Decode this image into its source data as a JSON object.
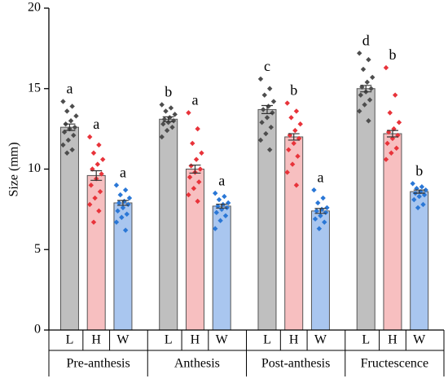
{
  "chart_data": {
    "type": "bar",
    "ylabel": "Size (mm)",
    "categories": [
      "Pre-anthesis",
      "Anthesis",
      "Post-anthesis",
      "Fructescence"
    ],
    "ylim": [
      0,
      20
    ],
    "yticks": [
      0,
      5,
      10,
      15,
      20
    ],
    "series": [
      {
        "name": "L",
        "color": "#bfbfbf",
        "point_color": "#4d4d4d",
        "values": [
          12.6,
          13.1,
          13.7,
          15.0
        ],
        "errors": [
          0.2,
          0.15,
          0.25,
          0.2
        ],
        "letters": [
          "a",
          "b",
          "c",
          "d"
        ],
        "points": [
          [
            14.2,
            13.9,
            13.6,
            13.3,
            13.0,
            12.8,
            12.6,
            12.5,
            12.3,
            12.1,
            11.8,
            11.5,
            11.2,
            11.0
          ],
          [
            14.0,
            13.8,
            13.6,
            13.4,
            13.2,
            13.1,
            13.0,
            12.9,
            12.8,
            12.6,
            12.4,
            12.0
          ],
          [
            15.6,
            15.0,
            14.6,
            14.2,
            13.9,
            13.7,
            13.5,
            13.2,
            12.9,
            12.6,
            12.2,
            11.8,
            11.2
          ],
          [
            17.2,
            16.8,
            16.2,
            15.7,
            15.4,
            15.1,
            15.0,
            14.8,
            14.6,
            14.3,
            14.0,
            13.6,
            13.0
          ]
        ]
      },
      {
        "name": "H",
        "color": "#f7bfc0",
        "point_color": "#e8333a",
        "values": [
          9.6,
          10.0,
          12.0,
          12.2
        ],
        "errors": [
          0.3,
          0.25,
          0.2,
          0.2
        ],
        "letters": [
          "a",
          "a",
          "b",
          "b"
        ],
        "points": [
          [
            12.0,
            11.5,
            11.0,
            10.6,
            10.3,
            10.0,
            9.7,
            9.4,
            9.0,
            8.6,
            8.2,
            7.8,
            7.4,
            6.7
          ],
          [
            13.5,
            12.5,
            11.6,
            11.0,
            10.6,
            10.2,
            10.0,
            9.8,
            9.5,
            9.2,
            8.8,
            8.4,
            8.0
          ],
          [
            14.1,
            13.6,
            13.2,
            12.8,
            12.4,
            12.1,
            11.9,
            11.6,
            11.2,
            10.8,
            10.3,
            9.8,
            9.0
          ],
          [
            16.3,
            14.6,
            13.5,
            12.9,
            12.5,
            12.3,
            12.1,
            11.9,
            11.6,
            11.3,
            11.0,
            10.6
          ]
        ]
      },
      {
        "name": "W",
        "color": "#a9c6ef",
        "point_color": "#2a77d6",
        "values": [
          7.9,
          7.7,
          7.4,
          8.6
        ],
        "errors": [
          0.15,
          0.12,
          0.15,
          0.1
        ],
        "letters": [
          "a",
          "a",
          "a",
          "b"
        ],
        "points": [
          [
            9.0,
            8.7,
            8.4,
            8.2,
            8.0,
            7.9,
            7.8,
            7.6,
            7.4,
            7.2,
            7.0,
            6.7,
            6.2
          ],
          [
            8.5,
            8.3,
            8.1,
            7.9,
            7.8,
            7.7,
            7.6,
            7.5,
            7.3,
            7.1,
            6.8,
            6.3
          ],
          [
            8.7,
            8.2,
            7.9,
            7.6,
            7.5,
            7.4,
            7.3,
            7.1,
            6.9,
            6.7,
            6.3
          ],
          [
            9.1,
            8.9,
            8.8,
            8.7,
            8.6,
            8.5,
            8.4,
            8.3,
            8.1,
            7.8,
            7.6
          ]
        ]
      }
    ]
  }
}
